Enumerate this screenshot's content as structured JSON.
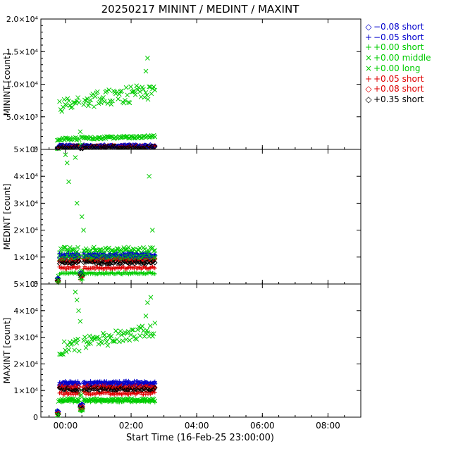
{
  "chart_data": {
    "type": "scatter",
    "title": "20250217 MININT / MEDINT / MAXINT",
    "xlabel": "Start Time (16-Feb-25 23:00:00)",
    "x_ticks": [
      "00:00",
      "02:00",
      "04:00",
      "06:00",
      "08:00"
    ],
    "x_range_hours": [
      -0.75,
      9.0
    ],
    "data_span_hours": [
      -0.5,
      2.75
    ],
    "legend": [
      {
        "label": "−0.08 short",
        "symbol": "◇",
        "color": "#0000cc"
      },
      {
        "label": "−0.05 short",
        "symbol": "+",
        "color": "#0000cc"
      },
      {
        "label": "+0.00 short",
        "symbol": "+",
        "color": "#00cc00"
      },
      {
        "label": "+0.00 middle",
        "symbol": "×",
        "color": "#00cc00"
      },
      {
        "label": "+0.00 long",
        "symbol": "×",
        "color": "#00cc00"
      },
      {
        "label": "+0.05 short",
        "symbol": "+",
        "color": "#dd0000"
      },
      {
        "label": "+0.08 short",
        "symbol": "◇",
        "color": "#dd0000"
      },
      {
        "label": "+0.35 short",
        "symbol": "◇",
        "color": "#000000"
      }
    ],
    "panels": [
      {
        "ylabel": "MININT [count]",
        "ylim": [
          0,
          20000
        ],
        "y_ticks": [
          "0",
          "5.0×10³",
          "1.0×10⁴",
          "1.5×10⁴",
          "2.0×10⁴"
        ],
        "levels": {
          "middle": 6500,
          "middle_end": 9000,
          "long": 1500,
          "long_end": 2000,
          "others": 400
        }
      },
      {
        "ylabel": "MEDINT [count]",
        "ylim": [
          0,
          50000
        ],
        "y_ticks": [
          "0",
          "1×10⁴",
          "2×10⁴",
          "3×10⁴",
          "4×10⁴",
          "5×10⁴"
        ],
        "levels": {
          "middle": 12500,
          "m005": 11000,
          "m008": 10000,
          "p008": 9000,
          "p035": 8000,
          "p005": 6000,
          "p000s": 4000,
          "long": 10000
        }
      },
      {
        "ylabel": "MAXINT [count]",
        "ylim": [
          0,
          50000
        ],
        "y_ticks": [
          "0",
          "1×10⁴",
          "2×10⁴",
          "3×10⁴",
          "4×10⁴",
          "5×10⁴"
        ],
        "levels": {
          "middle": 25000,
          "middle_end": 33000,
          "m005": 13000,
          "m008": 12500,
          "p008": 11500,
          "p035": 10500,
          "p005": 9000,
          "p000s": 6000,
          "long": 6500
        }
      }
    ]
  }
}
